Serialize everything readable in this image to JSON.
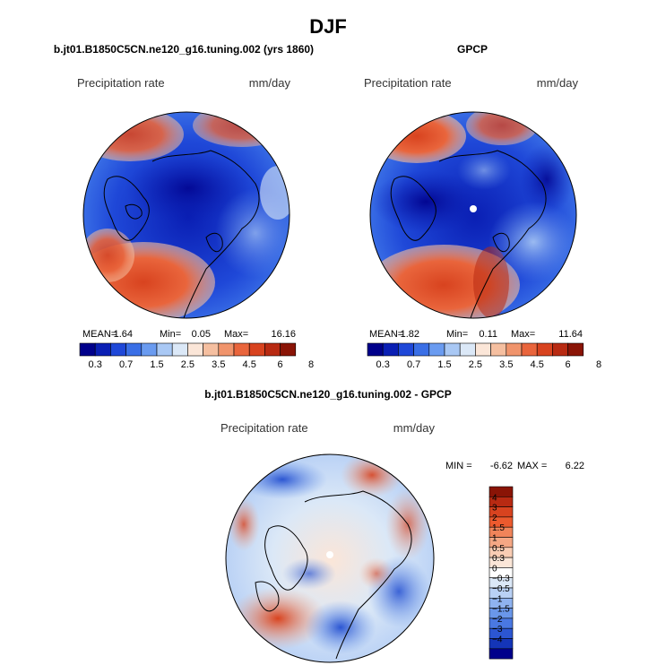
{
  "title": "DJF",
  "panel_left": {
    "title": "b.jt01.B1850C5CN.ne120_g16.tuning.002 (yrs 1860)",
    "var_label": "Precipitation rate",
    "units": "mm/day",
    "stats": {
      "mean_label": "MEAN=",
      "mean": "1.64",
      "min_label": "Min=",
      "min": "0.05",
      "max_label": "Max=",
      "max": "16.16"
    }
  },
  "panel_right": {
    "title": "GPCP",
    "var_label": "Precipitation rate",
    "units": "mm/day",
    "stats": {
      "mean_label": "MEAN=",
      "mean": "1.82",
      "min_label": "Min=",
      "min": "0.11",
      "max_label": "Max=",
      "max": "11.64"
    }
  },
  "panel_diff": {
    "title": "b.jt01.B1850C5CN.ne120_g16.tuning.002 - GPCP",
    "var_label": "Precipitation rate",
    "units": "mm/day",
    "stats": {
      "min_label": "MIN =",
      "min": "-6.62",
      "max_label": "MAX =",
      "max": "6.22"
    }
  },
  "abs_colorbar": {
    "colors": [
      "#00008b",
      "#0a1fb4",
      "#1f48d8",
      "#3a6fe6",
      "#6a9bf0",
      "#a9c8f4",
      "#dbe8f7",
      "#fbe6d8",
      "#f5bfa0",
      "#f0946c",
      "#e9653c",
      "#d8431f",
      "#b82a12",
      "#8a1406"
    ],
    "ticks": [
      "0.3",
      "0.7",
      "1.5",
      "2.5",
      "3.5",
      "4.5",
      "6",
      "8"
    ]
  },
  "diff_colorbar": {
    "colors": [
      "#8a1406",
      "#b82a12",
      "#d8431f",
      "#ec5a2e",
      "#f0845a",
      "#f5a784",
      "#f9cdb4",
      "#fbe6d8",
      "#ffffff",
      "#dbe8f7",
      "#b9d1f5",
      "#8fb3f0",
      "#6a97ea",
      "#4a78e2",
      "#2c56d2",
      "#1435b8",
      "#00008b"
    ],
    "labels": [
      "4",
      "3",
      "2",
      "1.5",
      "1",
      "0.5",
      "0.3",
      "0",
      "−0.3",
      "−0.5",
      "−1",
      "−1.5",
      "−2",
      "−3",
      "−4"
    ]
  }
}
